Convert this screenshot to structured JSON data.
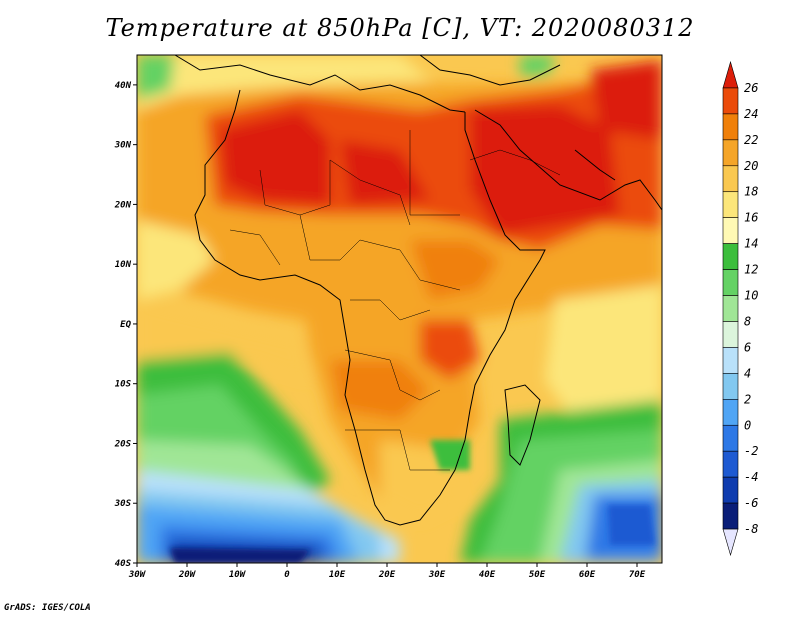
{
  "title": "Temperature at 850hPa [C], VT: 2020080312",
  "credit": "GrADS: IGES/COLA",
  "map": {
    "lon_range": [
      -30,
      75
    ],
    "lat_range": [
      -40,
      45
    ],
    "y_ticks": [
      {
        "lat": 40,
        "label": "40N"
      },
      {
        "lat": 30,
        "label": "30N"
      },
      {
        "lat": 20,
        "label": "20N"
      },
      {
        "lat": 10,
        "label": "10N"
      },
      {
        "lat": 0,
        "label": "EQ"
      },
      {
        "lat": -10,
        "label": "10S"
      },
      {
        "lat": -20,
        "label": "20S"
      },
      {
        "lat": -30,
        "label": "30S"
      },
      {
        "lat": -40,
        "label": "40S"
      }
    ],
    "x_ticks": [
      {
        "lon": -30,
        "label": "30W"
      },
      {
        "lon": -20,
        "label": "20W"
      },
      {
        "lon": -10,
        "label": "10W"
      },
      {
        "lon": 0,
        "label": "0"
      },
      {
        "lon": 10,
        "label": "10E"
      },
      {
        "lon": 20,
        "label": "20E"
      },
      {
        "lon": 30,
        "label": "30E"
      },
      {
        "lon": 40,
        "label": "40E"
      },
      {
        "lon": 50,
        "label": "50E"
      },
      {
        "lon": 60,
        "label": "60E"
      },
      {
        "lon": 70,
        "label": "70E"
      }
    ]
  },
  "colorbar": {
    "labels": [
      "26",
      "24",
      "22",
      "20",
      "18",
      "16",
      "14",
      "12",
      "10",
      "8",
      "6",
      "4",
      "2",
      "0",
      "-2",
      "-4",
      "-6",
      "-8"
    ],
    "colors": [
      "#dc1e0a",
      "#eb4b0a",
      "#f0800a",
      "#f5a528",
      "#fac850",
      "#fce67a",
      "#fff9b4",
      "#3cbe3c",
      "#64d264",
      "#a0e696",
      "#dcf5dc",
      "#b9e1fa",
      "#82c8f0",
      "#50a5f5",
      "#2d78e6",
      "#1e5ad2",
      "#0f3caf",
      "#0a1e78",
      "#e6e6ff"
    ]
  }
}
